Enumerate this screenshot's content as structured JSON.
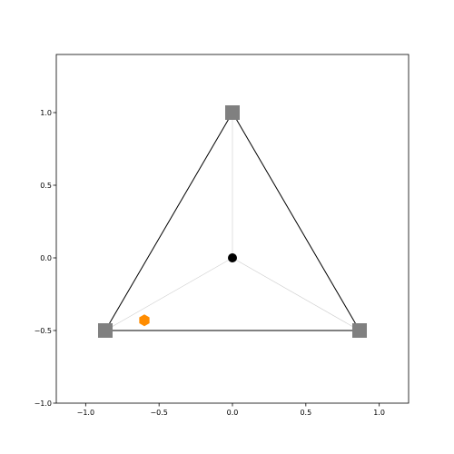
{
  "chart_data": {
    "type": "scatter",
    "title": "",
    "xlabel": "",
    "ylabel": "",
    "xlim": [
      -1.2,
      1.2
    ],
    "ylim": [
      -1.0,
      1.4
    ],
    "grid": false,
    "xticks": [
      -1.0,
      -0.5,
      0.0,
      0.5,
      1.0
    ],
    "yticks": [
      -1.0,
      -0.5,
      0.0,
      0.5,
      1.0
    ],
    "xtick_labels": [
      "−1.0",
      "−0.5",
      "0.0",
      "0.5",
      "1.0"
    ],
    "ytick_labels": [
      "−1.0",
      "−0.5",
      "0.0",
      "0.5",
      "1.0"
    ],
    "triangle": {
      "vertices": [
        {
          "x": 0.0,
          "y": 1.0
        },
        {
          "x": -0.866,
          "y": -0.5
        },
        {
          "x": 0.866,
          "y": -0.5
        }
      ],
      "color": "#000000"
    },
    "center_lines": {
      "from": {
        "x": 0.0,
        "y": 0.0
      },
      "color": "#cccccc"
    },
    "series": [
      {
        "marker": "square",
        "color": "#808080",
        "points": [
          {
            "x": 0.0,
            "y": 1.0
          },
          {
            "x": -0.866,
            "y": -0.5
          },
          {
            "x": 0.866,
            "y": -0.5
          }
        ]
      },
      {
        "marker": "circle",
        "color": "#000000",
        "points": [
          {
            "x": 0.0,
            "y": 0.0
          }
        ]
      },
      {
        "marker": "hexagon",
        "color": "#ff8c00",
        "points": [
          {
            "x": -0.6,
            "y": -0.43
          }
        ]
      }
    ]
  }
}
